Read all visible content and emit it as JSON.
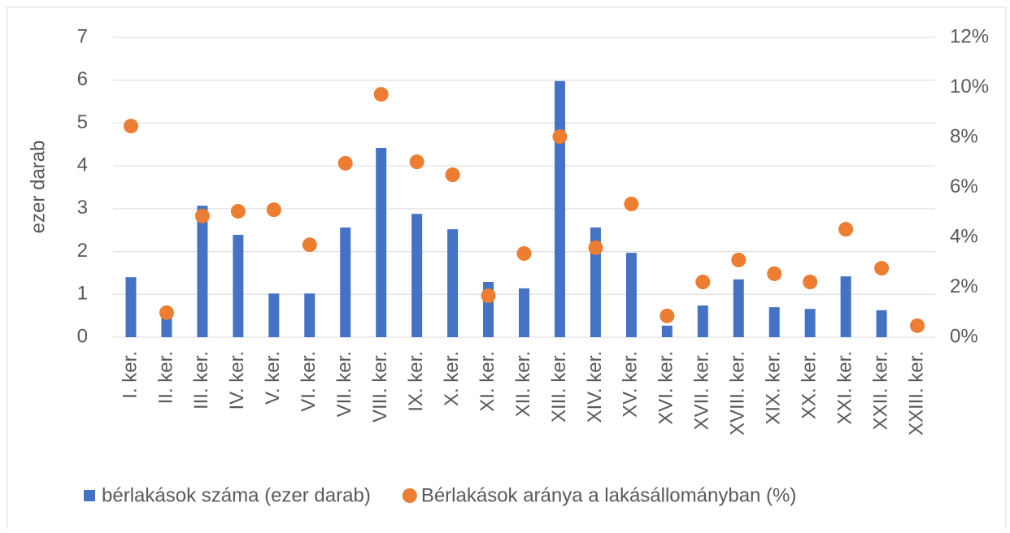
{
  "chart_data": {
    "type": "bar_scatter",
    "y_label": "ezer darab",
    "categories": [
      "I. ker.",
      "II. ker.",
      "III. ker.",
      "IV. ker.",
      "V. ker.",
      "VI. ker.",
      "VII. ker.",
      "VIII. ker.",
      "IX. ker.",
      "X. ker.",
      "XI. ker.",
      "XII. ker.",
      "XIII. ker.",
      "XIV. ker.",
      "XV. ker.",
      "XVI. ker.",
      "XVII. ker.",
      "XVIII. ker.",
      "XIX. ker.",
      "XX. ker.",
      "XXI. ker.",
      "XXII. ker.",
      "XXIII. ker."
    ],
    "series": [
      {
        "name": "bérlakások száma (ezer darab)",
        "color": "#4472c4",
        "kind": "bar",
        "values": [
          1.4,
          0.55,
          3.07,
          2.39,
          1.02,
          1.02,
          2.56,
          4.42,
          2.88,
          2.52,
          1.29,
          1.14,
          5.98,
          2.56,
          1.97,
          0.27,
          0.74,
          1.35,
          0.7,
          0.66,
          1.42,
          0.63,
          0
        ]
      },
      {
        "name": "Bérlakások aránya a lakásállományban (%)",
        "color": "#ed7d31",
        "kind": "scatter",
        "axis": "y2",
        "values": [
          8.45,
          0.98,
          4.85,
          5.04,
          5.1,
          3.7,
          6.96,
          9.72,
          7.02,
          6.5,
          1.66,
          3.35,
          8.03,
          3.58,
          5.33,
          0.85,
          2.21,
          3.09,
          2.54,
          2.21,
          4.32,
          2.76,
          0.46
        ]
      }
    ],
    "ylim": [
      0,
      7
    ],
    "yticks": [
      0,
      1,
      2,
      3,
      4,
      5,
      6,
      7
    ],
    "y2lim": [
      0,
      12
    ],
    "y2ticks": [
      {
        "value": 0,
        "label": "0%"
      },
      {
        "value": 2,
        "label": "2%"
      },
      {
        "value": 4,
        "label": "4%"
      },
      {
        "value": 6,
        "label": "6%"
      },
      {
        "value": 8,
        "label": "8%"
      },
      {
        "value": 10,
        "label": "10%"
      },
      {
        "value": 12,
        "label": "12%"
      }
    ],
    "grid": true,
    "legend": "bottom"
  }
}
